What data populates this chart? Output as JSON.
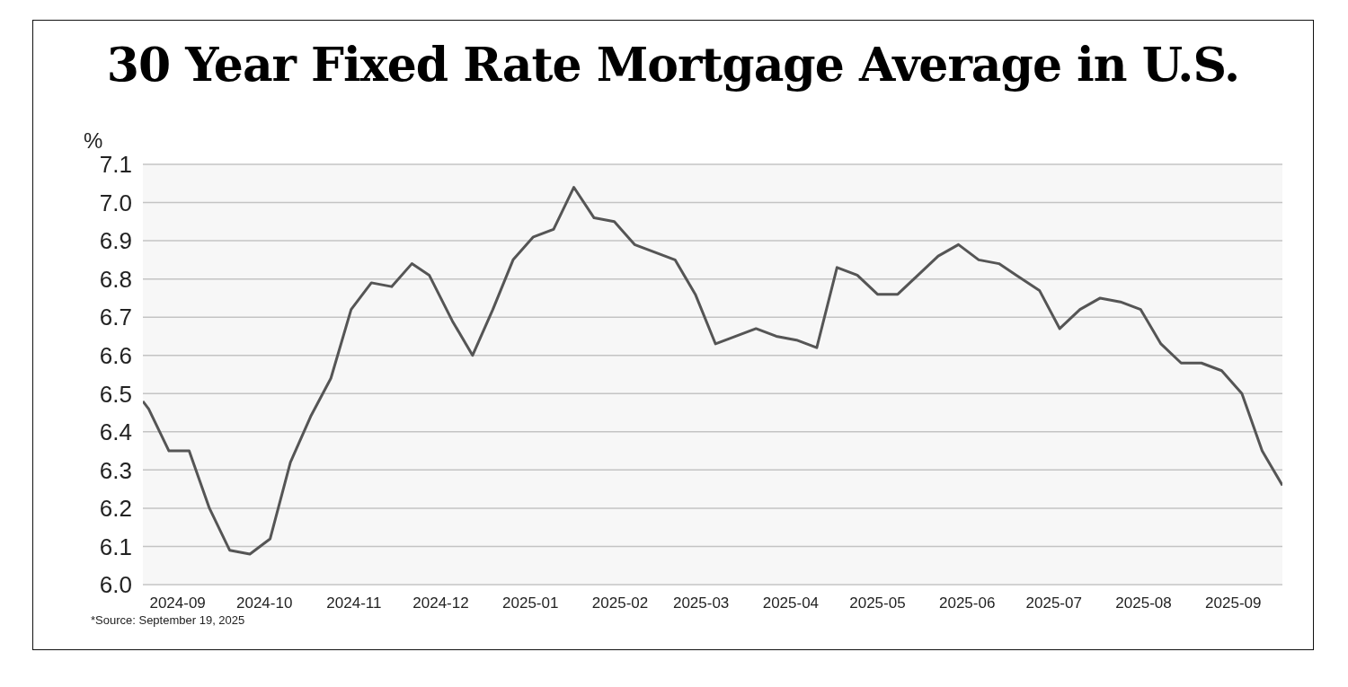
{
  "chart_data": {
    "type": "line",
    "title": "30 Year Fixed Rate Mortgage Average in U.S.",
    "ylabel": "%",
    "x": [
      "2024-08-20",
      "2024-08-22",
      "2024-08-29",
      "2024-09-05",
      "2024-09-12",
      "2024-09-19",
      "2024-09-26",
      "2024-10-03",
      "2024-10-10",
      "2024-10-17",
      "2024-10-24",
      "2024-10-31",
      "2024-11-07",
      "2024-11-14",
      "2024-11-21",
      "2024-11-27",
      "2024-12-05",
      "2024-12-12",
      "2024-12-19",
      "2024-12-26",
      "2025-01-02",
      "2025-01-09",
      "2025-01-16",
      "2025-01-23",
      "2025-01-30",
      "2025-02-06",
      "2025-02-13",
      "2025-02-20",
      "2025-02-27",
      "2025-03-06",
      "2025-03-13",
      "2025-03-20",
      "2025-03-27",
      "2025-04-03",
      "2025-04-10",
      "2025-04-17",
      "2025-04-24",
      "2025-05-01",
      "2025-05-08",
      "2025-05-15",
      "2025-05-22",
      "2025-05-29",
      "2025-06-05",
      "2025-06-12",
      "2025-06-18",
      "2025-06-26",
      "2025-07-03",
      "2025-07-10",
      "2025-07-17",
      "2025-07-24",
      "2025-07-31",
      "2025-08-07",
      "2025-08-14",
      "2025-08-21",
      "2025-08-28",
      "2025-09-04",
      "2025-09-11",
      "2025-09-18"
    ],
    "series": [
      {
        "color": "#555555",
        "values": [
          6.48,
          6.46,
          6.35,
          6.35,
          6.2,
          6.09,
          6.08,
          6.12,
          6.32,
          6.44,
          6.54,
          6.72,
          6.79,
          6.78,
          6.84,
          6.81,
          6.69,
          6.6,
          6.72,
          6.85,
          6.91,
          6.93,
          7.04,
          6.96,
          6.95,
          6.89,
          6.87,
          6.85,
          6.76,
          6.63,
          6.65,
          6.67,
          6.65,
          6.64,
          6.62,
          6.83,
          6.81,
          6.76,
          6.76,
          6.81,
          6.86,
          6.89,
          6.85,
          6.84,
          6.81,
          6.77,
          6.67,
          6.72,
          6.75,
          6.74,
          6.72,
          6.63,
          6.58,
          6.58,
          6.56,
          6.5,
          6.35,
          6.26
        ]
      }
    ],
    "xlim": [
      "2024-08-20",
      "2025-09-18"
    ],
    "xticks": [
      {
        "value": "2024-09-01",
        "label": "2024-09"
      },
      {
        "value": "2024-10-01",
        "label": "2024-10"
      },
      {
        "value": "2024-11-01",
        "label": "2024-11"
      },
      {
        "value": "2024-12-01",
        "label": "2024-12"
      },
      {
        "value": "2025-01-01",
        "label": "2025-01"
      },
      {
        "value": "2025-02-01",
        "label": "2025-02"
      },
      {
        "value": "2025-03-01",
        "label": "2025-03"
      },
      {
        "value": "2025-04-01",
        "label": "2025-04"
      },
      {
        "value": "2025-05-01",
        "label": "2025-05"
      },
      {
        "value": "2025-06-01",
        "label": "2025-06"
      },
      {
        "value": "2025-07-01",
        "label": "2025-07"
      },
      {
        "value": "2025-08-01",
        "label": "2025-08"
      },
      {
        "value": "2025-09-01",
        "label": "2025-09"
      }
    ],
    "ylim": [
      6.0,
      7.1
    ],
    "yticks": [
      {
        "value": 6,
        "label": "6.0"
      },
      6.1,
      6.2,
      6.3,
      6.4,
      6.5,
      6.6,
      6.7,
      6.8,
      6.9,
      {
        "value": 7,
        "label": "7.0"
      },
      7.1
    ],
    "grid": "y",
    "marker": "none",
    "line_style": "solid",
    "annotations": [
      "*Source: September 19, 2025"
    ]
  }
}
